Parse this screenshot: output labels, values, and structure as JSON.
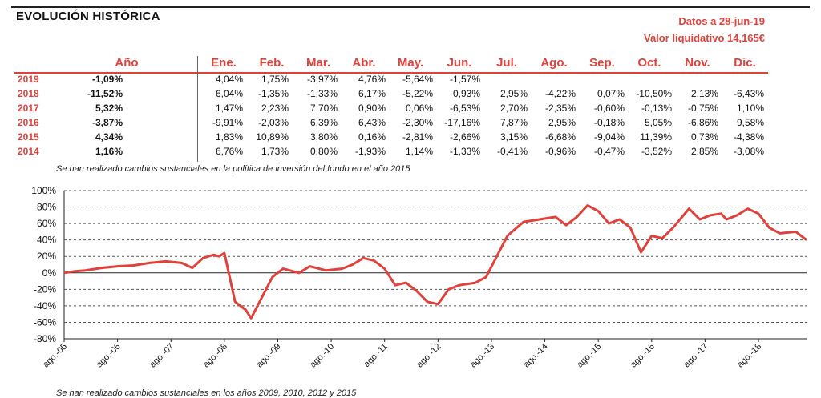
{
  "header": {
    "title": "EVOLUCIÓN HISTÓRICA",
    "date_label": "Datos a 28-jun-19",
    "nav_label": "Valor liquidativo 14,165€"
  },
  "table": {
    "year_header": "Año",
    "months": [
      "Ene.",
      "Feb.",
      "Mar.",
      "Abr.",
      "May.",
      "Jun.",
      "Jul.",
      "Ago.",
      "Sep.",
      "Oct.",
      "Nov.",
      "Dic."
    ],
    "rows": [
      {
        "year": "2019",
        "annual": "-1,09%",
        "m": [
          "4,04%",
          "1,75%",
          "-3,97%",
          "4,76%",
          "-5,64%",
          "-1,57%",
          "",
          "",
          "",
          "",
          "",
          ""
        ]
      },
      {
        "year": "2018",
        "annual": "-11,52%",
        "m": [
          "6,04%",
          "-1,35%",
          "-1,33%",
          "6,17%",
          "-5,22%",
          "0,93%",
          "2,95%",
          "-4,22%",
          "0,07%",
          "-10,50%",
          "2,13%",
          "-6,43%"
        ]
      },
      {
        "year": "2017",
        "annual": "5,32%",
        "m": [
          "1,47%",
          "2,23%",
          "7,70%",
          "0,90%",
          "0,06%",
          "-6,53%",
          "2,70%",
          "-2,35%",
          "-0,60%",
          "-0,13%",
          "-0,75%",
          "1,10%"
        ]
      },
      {
        "year": "2016",
        "annual": "-3,87%",
        "m": [
          "-9,91%",
          "-2,03%",
          "6,39%",
          "6,43%",
          "-2,30%",
          "-17,16%",
          "7,87%",
          "2,95%",
          "-0,18%",
          "5,05%",
          "-6,86%",
          "9,58%"
        ]
      },
      {
        "year": "2015",
        "annual": "4,34%",
        "m": [
          "1,83%",
          "10,89%",
          "3,80%",
          "0,16%",
          "-2,81%",
          "-2,66%",
          "3,15%",
          "-6,68%",
          "-9,04%",
          "11,39%",
          "0,73%",
          "-4,38%"
        ]
      },
      {
        "year": "2014",
        "annual": "1,16%",
        "m": [
          "6,76%",
          "1,73%",
          "0,80%",
          "-1,93%",
          "1,14%",
          "-1,33%",
          "-0,41%",
          "-0,96%",
          "-0,47%",
          "-3,52%",
          "2,85%",
          "-3,08%"
        ]
      }
    ]
  },
  "notes": {
    "table_note": "Se han realizado cambios sustanciales en la política de inversión del fondo en el año 2015",
    "chart_note": "Se han realizado cambios sustanciales en los años 2009, 2010, 2012 y 2015"
  },
  "chart_data": {
    "type": "line",
    "title": "",
    "xlabel": "",
    "ylabel": "",
    "ylim": [
      -80,
      100
    ],
    "yticks": [
      "100%",
      "80%",
      "60%",
      "40%",
      "20%",
      "0%",
      "-20%",
      "-40%",
      "-60%",
      "-80%"
    ],
    "xticks": [
      "ago.-05",
      "ago.-06",
      "ago.-07",
      "ago.-08",
      "ago.-09",
      "ago.-10",
      "ago.-11",
      "ago.-12",
      "ago.-13",
      "ago.-14",
      "ago.-15",
      "ago.-16",
      "ago.-17",
      "ago.-18"
    ],
    "x_start": "2005-08",
    "x_end": "2019-06",
    "grid": true,
    "line_color": "#e0413a",
    "series": [
      {
        "x": [
          2005.6,
          2005.8,
          2006.0,
          2006.3,
          2006.6,
          2006.9,
          2007.2,
          2007.5,
          2007.8,
          2008.0,
          2008.2,
          2008.4,
          2008.5,
          2008.6,
          2008.8,
          2009.0,
          2009.1,
          2009.3,
          2009.5,
          2009.7,
          2010.0,
          2010.2,
          2010.5,
          2010.8,
          2011.0,
          2011.2,
          2011.4,
          2011.6,
          2011.8,
          2012.0,
          2012.2,
          2012.4,
          2012.6,
          2012.8,
          2013.0,
          2013.3,
          2013.5,
          2013.7,
          2013.9,
          2014.2,
          2014.5,
          2014.8,
          2015.0,
          2015.2,
          2015.4,
          2015.6,
          2015.8,
          2016.0,
          2016.2,
          2016.4,
          2016.6,
          2016.8,
          2017.0,
          2017.3,
          2017.5,
          2017.7,
          2017.9,
          2018.0,
          2018.2,
          2018.4,
          2018.6,
          2018.8,
          2019.0,
          2019.3,
          2019.5
        ],
        "y": [
          0,
          2,
          3,
          6,
          8,
          9,
          12,
          14,
          12,
          6,
          18,
          22,
          20,
          24,
          -35,
          -45,
          -55,
          -30,
          -5,
          5,
          0,
          8,
          3,
          5,
          10,
          18,
          15,
          5,
          -15,
          -12,
          -22,
          -35,
          -38,
          -20,
          -15,
          -12,
          -5,
          20,
          45,
          62,
          65,
          68,
          58,
          68,
          82,
          75,
          60,
          65,
          55,
          25,
          45,
          42,
          55,
          78,
          65,
          70,
          72,
          65,
          70,
          78,
          72,
          55,
          48,
          50,
          40
        ]
      }
    ]
  }
}
